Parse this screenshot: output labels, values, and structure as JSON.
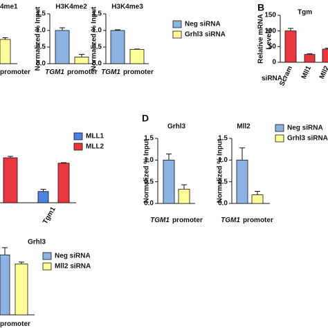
{
  "chart_data": [
    {
      "type": "bar",
      "title": "4me1",
      "xlabel": [
        "promoter"
      ],
      "categories": [
        null
      ],
      "series": [
        {
          "color": "#ffff99",
          "values": [
            0.73
          ],
          "errors": [
            0.05
          ]
        }
      ],
      "ylim": [
        0,
        1.5
      ]
    },
    {
      "type": "bar",
      "title": "H3K4me2",
      "ylabel": "Normalized % Input",
      "xlabel": [
        "TGM1",
        "promoter"
      ],
      "categories": [
        null
      ],
      "series": [
        {
          "color": "#8db3e2",
          "values": [
            1.0
          ],
          "errors": [
            0.08
          ]
        },
        {
          "color": "#ffff99",
          "values": [
            0.2
          ],
          "errors": [
            0.08
          ]
        }
      ],
      "ylim": [
        0,
        1.5
      ],
      "yticks": [
        {
          "value": 0,
          "label": "0.0"
        },
        {
          "value": 0.5,
          "label": "0.5"
        },
        {
          "value": 1,
          "label": "1.0"
        },
        {
          "value": 1.5,
          "label": "1.5"
        }
      ]
    },
    {
      "type": "bar",
      "title": "H3K4me3",
      "ylabel": "Normalized % Input",
      "xlabel": [
        "TGM1",
        "promoter"
      ],
      "categories": [
        null
      ],
      "series": [
        {
          "name": "Neg siRNA",
          "color": "#8db3e2",
          "values": [
            1.0
          ],
          "errors": [
            0.02
          ]
        },
        {
          "name": "Grhl3 siRNA",
          "color": "#ffff99",
          "values": [
            0.43
          ],
          "errors": [
            0.01
          ]
        }
      ],
      "ylim": [
        0,
        1.5
      ],
      "yticks": [
        {
          "value": 0,
          "label": "0.0"
        },
        {
          "value": 0.5,
          "label": "0.5"
        },
        {
          "value": 1,
          "label": "1.0"
        },
        {
          "value": 1.5,
          "label": "1.5"
        }
      ]
    },
    {
      "type": "bar",
      "panel": "B",
      "title": "Tgm",
      "ylabel": [
        "Relative mRNA",
        "Levels"
      ],
      "xlabel": [
        "siRNA:"
      ],
      "categories": [
        "Scram",
        "Mll1",
        "Mll2"
      ],
      "series": [
        {
          "color": "#e8383d",
          "values": [
            100,
            25,
            42
          ],
          "errors": [
            8,
            2,
            3
          ]
        }
      ],
      "ylim": [
        0,
        150
      ],
      "yticks": [
        0,
        50,
        100,
        150
      ]
    },
    {
      "type": "bar",
      "categories": [
        null,
        "Tgm1"
      ],
      "series": [
        {
          "name": "MLL1",
          "color": "#4f81e0",
          "values": [
            null,
            0.25
          ],
          "errors": [
            null,
            0.05
          ]
        },
        {
          "name": "MLL2",
          "color": "#e8383d",
          "values": [
            1.0,
            0.88
          ],
          "errors": [
            0.03,
            0.01
          ]
        }
      ],
      "ylim": [
        0,
        1.2
      ]
    },
    {
      "type": "bar",
      "panel": "D",
      "title": "Grhl3",
      "ylabel": "Normalized % Input",
      "xlabel": [
        "TGM1",
        "promoter"
      ],
      "categories": [
        null
      ],
      "series": [
        {
          "color": "#8db3e2",
          "values": [
            1.0
          ],
          "errors": [
            0.14
          ]
        },
        {
          "color": "#ffff99",
          "values": [
            0.33
          ],
          "errors": [
            0.1
          ]
        }
      ],
      "ylim": [
        0,
        1.5
      ],
      "yticks": [
        {
          "value": 0,
          "label": "0.0"
        },
        {
          "value": 0.5,
          "label": "0.5"
        },
        {
          "value": 1,
          "label": "1.0"
        },
        {
          "value": 1.5,
          "label": "1.5"
        }
      ]
    },
    {
      "type": "bar",
      "title": "Mll2",
      "ylabel": "Normalized % Input",
      "xlabel": [
        "TGM1",
        "promoter"
      ],
      "categories": [
        null
      ],
      "series": [
        {
          "name": "Neg siRNA",
          "color": "#8db3e2",
          "values": [
            1.0
          ],
          "errors": [
            0.28
          ]
        },
        {
          "name": "Grhl3 siRNA",
          "color": "#ffff99",
          "values": [
            0.2
          ],
          "errors": [
            0.08
          ]
        }
      ],
      "ylim": [
        0,
        1.5
      ],
      "yticks": [
        {
          "value": 0,
          "label": "0.0"
        },
        {
          "value": 0.5,
          "label": "0.5"
        },
        {
          "value": 1,
          "label": "1.0"
        },
        {
          "value": 1.5,
          "label": "1.5"
        }
      ]
    },
    {
      "type": "bar",
      "title": "Grhl3",
      "xlabel": [
        "promoter"
      ],
      "categories": [
        null
      ],
      "series": [
        {
          "name": "Neg siRNA",
          "color": "#8db3e2",
          "values": [
            1.0
          ],
          "errors": [
            0.12
          ]
        },
        {
          "name": "Mll2 siRNA",
          "color": "#ffff99",
          "values": [
            0.85
          ],
          "errors": [
            0.03
          ]
        }
      ],
      "ylim": [
        0,
        1.5
      ]
    }
  ]
}
